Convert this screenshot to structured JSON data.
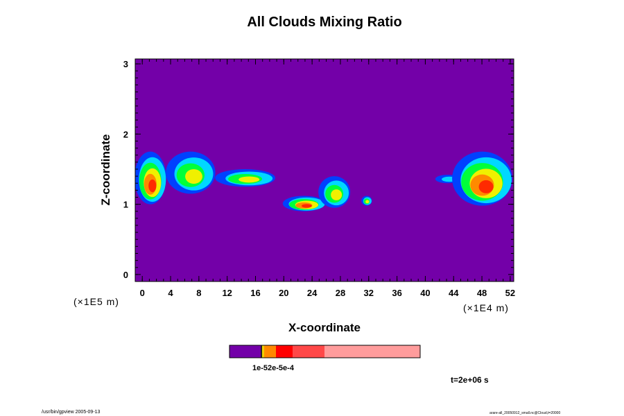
{
  "chart_data": {
    "type": "heatmap",
    "title": "All Clouds Mixing Ratio",
    "xlabel": "X-coordinate",
    "ylabel": "Z-coordinate",
    "x_unit_label": "(×1E4 m)",
    "y_unit_label": "(×1E5 m)",
    "xlim": [
      -1,
      52.5
    ],
    "ylim": [
      -0.1,
      3.07
    ],
    "xticks": [
      "0",
      "4",
      "8",
      "12",
      "16",
      "20",
      "24",
      "28",
      "32",
      "36",
      "40",
      "44",
      "48",
      "52"
    ],
    "yticks": [
      "0",
      "1",
      "2",
      "3"
    ],
    "background_color": "#7300a8",
    "cloud_colors": {
      "low": "#0040ff",
      "cyan": "#00d8ff",
      "green": "#00ff3a",
      "yellow": "#f0f000",
      "orange": "#ff8a00",
      "red": "#ff2a00"
    },
    "cloud_regions": [
      {
        "x": [
          -1,
          3.5
        ],
        "z": [
          1.0,
          1.75
        ],
        "peak": "red"
      },
      {
        "x": [
          3.5,
          10.5
        ],
        "z": [
          1.15,
          1.75
        ],
        "peak": "yellow"
      },
      {
        "x": [
          10.5,
          19.0
        ],
        "z": [
          1.25,
          1.5
        ],
        "peak": "yellow"
      },
      {
        "x": [
          20.0,
          26.0
        ],
        "z": [
          0.9,
          1.12
        ],
        "peak": "red"
      },
      {
        "x": [
          25.0,
          29.5
        ],
        "z": [
          0.95,
          1.4
        ],
        "peak": "yellow"
      },
      {
        "x": [
          31.0,
          32.5
        ],
        "z": [
          0.98,
          1.12
        ],
        "peak": "yellow"
      },
      {
        "x": [
          41.5,
          45.0
        ],
        "z": [
          1.3,
          1.42
        ],
        "peak": "cyan"
      },
      {
        "x": [
          44.0,
          52.5
        ],
        "z": [
          0.98,
          1.75
        ],
        "peak": "red"
      }
    ],
    "colorbar": {
      "segments": [
        {
          "color": "#7300a8",
          "width": 45
        },
        {
          "color": "#222222",
          "width": 2
        },
        {
          "color": "#f0d000",
          "width": 3
        },
        {
          "color": "#ff8c00",
          "width": 3
        },
        {
          "color": "#ff8800",
          "width": 14
        },
        {
          "color": "#ff0000",
          "width": 24
        },
        {
          "color": "#ff4848",
          "width": 46
        },
        {
          "color": "#ff9c9c",
          "width": 138
        }
      ],
      "tick_label": "1e-52e-5e-4"
    },
    "time_label": "t=2e+06 s",
    "footer_left": "/usr/bin/gpview 2005-09-13",
    "footer_right": "arare-all_20050912_small.nc@Cloud,t=20000"
  }
}
